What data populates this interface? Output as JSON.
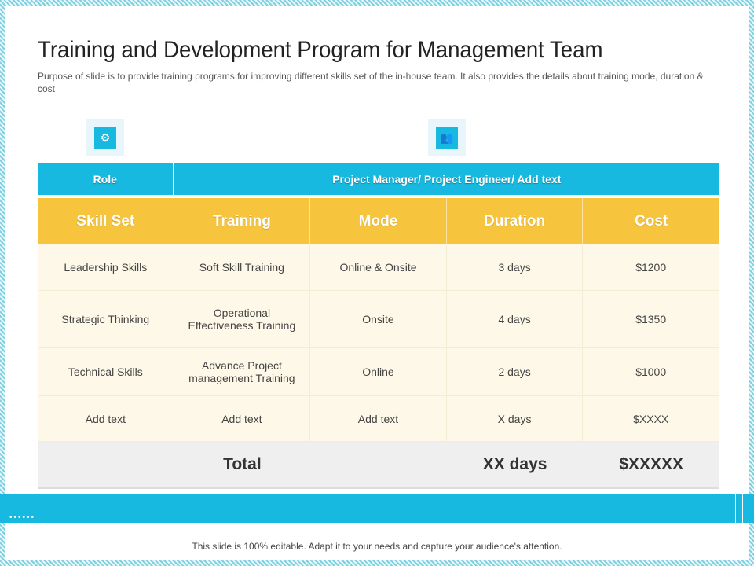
{
  "title": "Training and Development Program for Management Team",
  "subtitle": "Purpose of slide is to provide training programs for improving different skills set of the in-house team. It also provides the details about training mode, duration & cost",
  "icons": [
    "skills-hierarchy-icon",
    "team-group-icon"
  ],
  "role": {
    "label": "Role",
    "value": "Project Manager/ Project Engineer/ Add text"
  },
  "headers": [
    "Skill Set",
    "Training",
    "Mode",
    "Duration",
    "Cost"
  ],
  "rows": [
    [
      "Leadership Skills",
      "Soft Skill Training",
      "Online & Onsite",
      "3 days",
      "$1200"
    ],
    [
      "Strategic Thinking",
      "Operational Effectiveness Training",
      "Onsite",
      "4 days",
      "$1350"
    ],
    [
      "Technical Skills",
      "Advance Project management Training",
      "Online",
      "2 days",
      "$1000"
    ],
    [
      "Add text",
      "Add text",
      "Add text",
      "X days",
      "$XXXX"
    ]
  ],
  "total": {
    "label": "Total",
    "duration": "XX days",
    "cost": "$XXXXX"
  },
  "band_dots": "••••••",
  "footer": "This slide is 100% editable. Adapt it to your needs and capture your audience's attention.",
  "colors": {
    "accent": "#17b9e0",
    "header": "#f7c53d",
    "row": "#fdf8e7",
    "total": "#efefef"
  }
}
